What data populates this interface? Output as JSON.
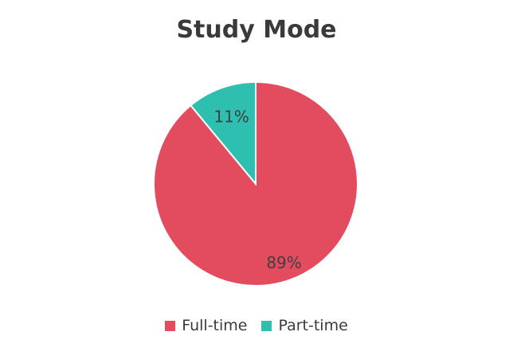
{
  "chart_data": {
    "type": "pie",
    "title": "Study Mode",
    "slices": [
      {
        "label": "Full-time",
        "value": 89,
        "display": "89%",
        "color": "#e34c5e"
      },
      {
        "label": "Part-time",
        "value": 11,
        "display": "11%",
        "color": "#2ebfb0"
      }
    ],
    "legend_position": "bottom"
  }
}
